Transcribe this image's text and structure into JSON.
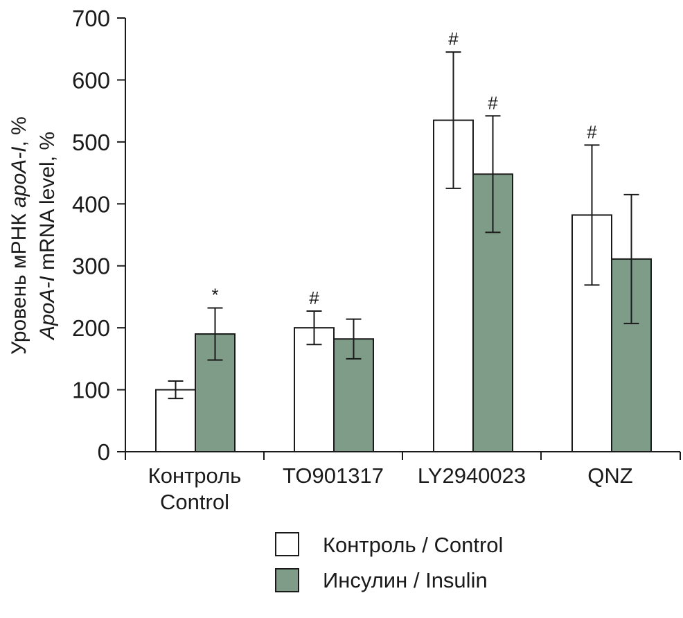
{
  "chart_data": {
    "type": "bar",
    "categories": [
      {
        "line1": "Контроль",
        "line2": "Control"
      },
      {
        "line1": "TO901317",
        "line2": ""
      },
      {
        "line1": "LY2940023",
        "line2": ""
      },
      {
        "line1": "QNZ",
        "line2": ""
      }
    ],
    "series": [
      {
        "name": "Контроль / Control",
        "color": "#ffffff",
        "values": [
          100,
          200,
          535,
          382
        ],
        "errors": [
          14,
          27,
          110,
          113
        ],
        "marks": [
          "",
          "#",
          "#",
          "#"
        ]
      },
      {
        "name": "Инсулин / Insulin",
        "color": "#7f9c89",
        "values": [
          190,
          182,
          448,
          311
        ],
        "errors": [
          42,
          32,
          94,
          104
        ],
        "marks": [
          "*",
          "",
          "#",
          ""
        ]
      }
    ],
    "ylabel": {
      "line1_prefix": "Уровень мРНК ",
      "line1_italic": "apoA-I",
      "line1_suffix": ", %",
      "line2_italic": "ApoA-I",
      "line2_suffix": " mRNA level, %"
    },
    "ylim": [
      0,
      700
    ],
    "yticks": [
      "0",
      "100",
      "200",
      "300",
      "400",
      "500",
      "600",
      "700"
    ],
    "legend_position": "bottom",
    "grid": false,
    "colors": {
      "axis": "#1a1a1a",
      "bar_stroke": "#1a1a1a"
    }
  }
}
